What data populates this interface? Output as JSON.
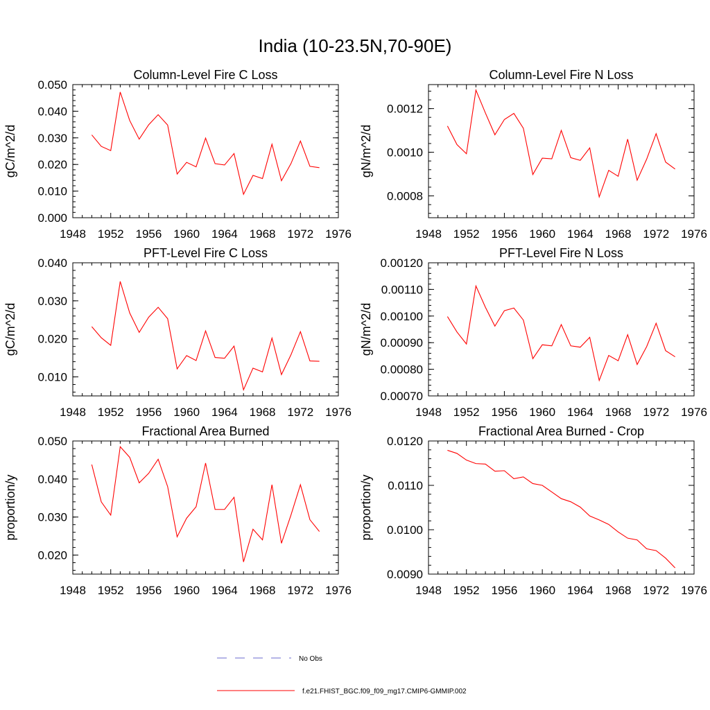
{
  "figure_title": "India (10-23.5N,70-90E)",
  "colors": {
    "model_line": "#ff0000",
    "obs_line": "#6a6acd",
    "axis": "#000000"
  },
  "legend": [
    {
      "label": "No Obs",
      "style": "dashed",
      "color": "#6a6acd"
    },
    {
      "label": "f.e21.FHIST_BGC.f09_f09_mg17.CMIP6-GMMIP.002",
      "style": "solid",
      "color": "#ff0000"
    }
  ],
  "chart_data": [
    {
      "type": "line",
      "title": "Column-Level Fire C Loss",
      "xlabel": "",
      "ylabel": "gC/m^2/d",
      "xlim": [
        1948,
        1976
      ],
      "ylim": [
        0.0,
        0.05
      ],
      "xticks": [
        1948,
        1952,
        1956,
        1960,
        1964,
        1968,
        1972,
        1976
      ],
      "xtick_labels": [
        "1948",
        "1952",
        "1956",
        "1960",
        "1964",
        "1968",
        "1972",
        "1976"
      ],
      "yticks": [
        0.0,
        0.01,
        0.02,
        0.03,
        0.04,
        0.05
      ],
      "ytick_labels": [
        "0.000",
        "0.010",
        "0.020",
        "0.030",
        "0.040",
        "0.050"
      ],
      "yminor_step": 0.002,
      "x": [
        1950,
        1951,
        1952,
        1953,
        1954,
        1955,
        1956,
        1957,
        1958,
        1959,
        1960,
        1961,
        1962,
        1963,
        1964,
        1965,
        1966,
        1967,
        1968,
        1969,
        1970,
        1971,
        1972,
        1973,
        1974
      ],
      "series": [
        {
          "name": "f.e21.FHIST_BGC.f09_f09_mg17.CMIP6-GMMIP.002",
          "values": [
            0.0311,
            0.0268,
            0.0252,
            0.0472,
            0.0365,
            0.0295,
            0.0349,
            0.0387,
            0.0348,
            0.0164,
            0.0208,
            0.0191,
            0.0299,
            0.0203,
            0.0198,
            0.0241,
            0.0088,
            0.0159,
            0.0147,
            0.0276,
            0.0139,
            0.0203,
            0.0288,
            0.0193,
            0.0188
          ]
        }
      ]
    },
    {
      "type": "line",
      "title": "Column-Level Fire N Loss",
      "xlabel": "",
      "ylabel": "gN/m^2/d",
      "xlim": [
        1948,
        1976
      ],
      "ylim": [
        0.0007,
        0.00131
      ],
      "xticks": [
        1948,
        1952,
        1956,
        1960,
        1964,
        1968,
        1972,
        1976
      ],
      "xtick_labels": [
        "1948",
        "1952",
        "1956",
        "1960",
        "1964",
        "1968",
        "1972",
        "1976"
      ],
      "yticks": [
        0.0008,
        0.001,
        0.0012
      ],
      "ytick_labels": [
        "0.0008",
        "0.0010",
        "0.0012"
      ],
      "yminor_step": 4e-05,
      "x": [
        1950,
        1951,
        1952,
        1953,
        1954,
        1955,
        1956,
        1957,
        1958,
        1959,
        1960,
        1961,
        1962,
        1963,
        1964,
        1965,
        1966,
        1967,
        1968,
        1969,
        1970,
        1971,
        1972,
        1973,
        1974
      ],
      "series": [
        {
          "name": "f.e21.FHIST_BGC.f09_f09_mg17.CMIP6-GMMIP.002",
          "values": [
            0.00112,
            0.001035,
            0.000993,
            0.001285,
            0.00118,
            0.00108,
            0.00115,
            0.001178,
            0.00111,
            0.000898,
            0.000973,
            0.00097,
            0.0011,
            0.000975,
            0.000963,
            0.00102,
            0.000795,
            0.000917,
            0.00089,
            0.00106,
            0.000872,
            0.000968,
            0.001085,
            0.000955,
            0.000923
          ]
        }
      ]
    },
    {
      "type": "line",
      "title": "PFT-Level Fire C Loss",
      "xlabel": "",
      "ylabel": "gC/m^2/d",
      "xlim": [
        1948,
        1976
      ],
      "ylim": [
        0.005,
        0.04
      ],
      "xticks": [
        1948,
        1952,
        1956,
        1960,
        1964,
        1968,
        1972,
        1976
      ],
      "xtick_labels": [
        "1948",
        "1952",
        "1956",
        "1960",
        "1964",
        "1968",
        "1972",
        "1976"
      ],
      "yticks": [
        0.01,
        0.02,
        0.03,
        0.04
      ],
      "ytick_labels": [
        "0.010",
        "0.020",
        "0.030",
        "0.040"
      ],
      "yminor_step": 0.002,
      "x": [
        1950,
        1951,
        1952,
        1953,
        1954,
        1955,
        1956,
        1957,
        1958,
        1959,
        1960,
        1961,
        1962,
        1963,
        1964,
        1965,
        1966,
        1967,
        1968,
        1969,
        1970,
        1971,
        1972,
        1973,
        1974
      ],
      "series": [
        {
          "name": "f.e21.FHIST_BGC.f09_f09_mg17.CMIP6-GMMIP.002",
          "values": [
            0.0232,
            0.0203,
            0.0183,
            0.0351,
            0.0268,
            0.0217,
            0.0257,
            0.0283,
            0.0253,
            0.0121,
            0.0156,
            0.0143,
            0.0221,
            0.0151,
            0.0149,
            0.0181,
            0.0066,
            0.0123,
            0.0113,
            0.0202,
            0.0106,
            0.0158,
            0.0219,
            0.0142,
            0.0141
          ]
        }
      ]
    },
    {
      "type": "line",
      "title": "PFT-Level Fire N Loss",
      "xlabel": "",
      "ylabel": "gN/m^2/d",
      "xlim": [
        1948,
        1976
      ],
      "ylim": [
        0.0007,
        0.0012
      ],
      "xticks": [
        1948,
        1952,
        1956,
        1960,
        1964,
        1968,
        1972,
        1976
      ],
      "xtick_labels": [
        "1948",
        "1952",
        "1956",
        "1960",
        "1964",
        "1968",
        "1972",
        "1976"
      ],
      "yticks": [
        0.0007,
        0.0008,
        0.0009,
        0.001,
        0.0011,
        0.0012
      ],
      "ytick_labels": [
        "0.00070",
        "0.00080",
        "0.00090",
        "0.00100",
        "0.00110",
        "0.00120"
      ],
      "yminor_step": 2e-05,
      "x": [
        1950,
        1951,
        1952,
        1953,
        1954,
        1955,
        1956,
        1957,
        1958,
        1959,
        1960,
        1961,
        1962,
        1963,
        1964,
        1965,
        1966,
        1967,
        1968,
        1969,
        1970,
        1971,
        1972,
        1973,
        1974
      ],
      "series": [
        {
          "name": "f.e21.FHIST_BGC.f09_f09_mg17.CMIP6-GMMIP.002",
          "values": [
            0.000998,
            0.00094,
            0.000895,
            0.001113,
            0.001033,
            0.000962,
            0.00102,
            0.00103,
            0.000985,
            0.00084,
            0.000892,
            0.000888,
            0.000968,
            0.000888,
            0.000883,
            0.00092,
            0.000758,
            0.000852,
            0.000832,
            0.00093,
            0.000818,
            0.000885,
            0.000973,
            0.00087,
            0.000847
          ]
        }
      ]
    },
    {
      "type": "line",
      "title": "Fractional Area Burned",
      "xlabel": "",
      "ylabel": "proportion/y",
      "xlim": [
        1948,
        1976
      ],
      "ylim": [
        0.015,
        0.05
      ],
      "xticks": [
        1948,
        1952,
        1956,
        1960,
        1964,
        1968,
        1972,
        1976
      ],
      "xtick_labels": [
        "1948",
        "1952",
        "1956",
        "1960",
        "1964",
        "1968",
        "1972",
        "1976"
      ],
      "yticks": [
        0.02,
        0.03,
        0.04,
        0.05
      ],
      "ytick_labels": [
        "0.020",
        "0.030",
        "0.040",
        "0.050"
      ],
      "yminor_step": 0.002,
      "x": [
        1950,
        1951,
        1952,
        1953,
        1954,
        1955,
        1956,
        1957,
        1958,
        1959,
        1960,
        1961,
        1962,
        1963,
        1964,
        1965,
        1966,
        1967,
        1968,
        1969,
        1970,
        1971,
        1972,
        1973,
        1974
      ],
      "series": [
        {
          "name": "f.e21.FHIST_BGC.f09_f09_mg17.CMIP6-GMMIP.002",
          "values": [
            0.0438,
            0.034,
            0.0305,
            0.0485,
            0.0457,
            0.039,
            0.0415,
            0.0452,
            0.038,
            0.0248,
            0.0297,
            0.0327,
            0.0442,
            0.032,
            0.032,
            0.0352,
            0.0182,
            0.0268,
            0.024,
            0.0385,
            0.0231,
            0.0305,
            0.0385,
            0.0293,
            0.0262
          ]
        }
      ]
    },
    {
      "type": "line",
      "title": "Fractional Area Burned - Crop",
      "xlabel": "",
      "ylabel": "proportion/y",
      "xlim": [
        1948,
        1976
      ],
      "ylim": [
        0.009,
        0.012
      ],
      "xticks": [
        1948,
        1952,
        1956,
        1960,
        1964,
        1968,
        1972,
        1976
      ],
      "xtick_labels": [
        "1948",
        "1952",
        "1956",
        "1960",
        "1964",
        "1968",
        "1972",
        "1976"
      ],
      "yticks": [
        0.009,
        0.01,
        0.011,
        0.012
      ],
      "ytick_labels": [
        "0.0090",
        "0.0100",
        "0.0110",
        "0.0120"
      ],
      "yminor_step": 0.0002,
      "x": [
        1950,
        1951,
        1952,
        1953,
        1954,
        1955,
        1956,
        1957,
        1958,
        1959,
        1960,
        1961,
        1962,
        1963,
        1964,
        1965,
        1966,
        1967,
        1968,
        1969,
        1970,
        1971,
        1972,
        1973,
        1974
      ],
      "series": [
        {
          "name": "f.e21.FHIST_BGC.f09_f09_mg17.CMIP6-GMMIP.002",
          "values": [
            0.01179,
            0.01172,
            0.01157,
            0.01149,
            0.01148,
            0.01132,
            0.01133,
            0.01115,
            0.01119,
            0.01104,
            0.011,
            0.01085,
            0.0107,
            0.01063,
            0.01051,
            0.01031,
            0.01022,
            0.01012,
            0.00995,
            0.00981,
            0.00977,
            0.00957,
            0.00953,
            0.00936,
            0.00914
          ]
        }
      ]
    }
  ]
}
